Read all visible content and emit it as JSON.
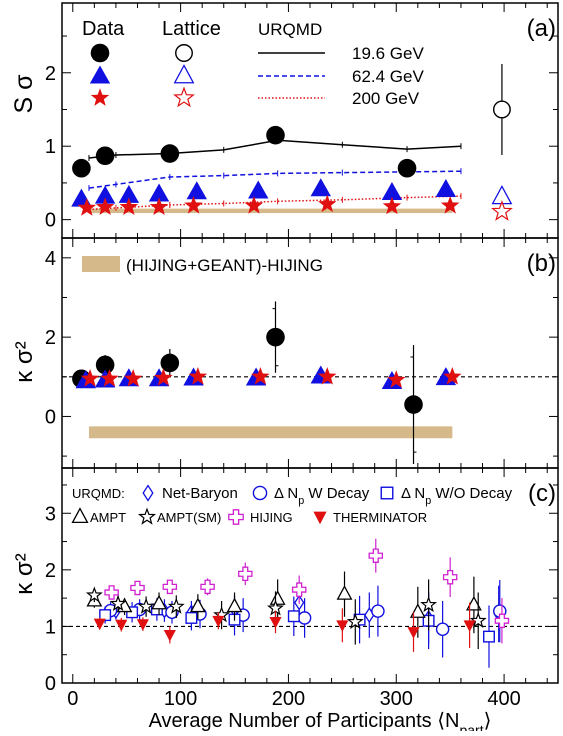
{
  "chart_data": [
    {
      "panel": "(a)",
      "type": "scatter",
      "ylabel": "S σ",
      "ylim": [
        -0.25,
        2.95
      ],
      "xlim": [
        -10,
        450
      ],
      "yticks": [
        0,
        1,
        2
      ],
      "legend": {
        "headers": [
          "Data",
          "Lattice",
          "URQMD"
        ],
        "energies": [
          "19.6 GeV",
          "62.4 GeV",
          "200 GeV"
        ]
      },
      "series": [
        {
          "name": "19.6 GeV",
          "color": "#000000",
          "marker": "circle",
          "data": [
            [
              8,
              0.7
            ],
            [
              30,
              0.87
            ],
            [
              90,
              0.9
            ],
            [
              188,
              1.15
            ],
            [
              310,
              0.7
            ]
          ]
        },
        {
          "name": "62.4 GeV",
          "color": "#1010e0",
          "marker": "triangle",
          "data": [
            [
              8,
              0.28
            ],
            [
              30,
              0.32
            ],
            [
              52,
              0.33
            ],
            [
              80,
              0.35
            ],
            [
              115,
              0.38
            ],
            [
              172,
              0.39
            ],
            [
              230,
              0.42
            ],
            [
              296,
              0.37
            ],
            [
              346,
              0.41
            ]
          ]
        },
        {
          "name": "200 GeV",
          "color": "#e01010",
          "marker": "star",
          "data": [
            [
              13,
              0.16
            ],
            [
              30,
              0.17
            ],
            [
              52,
              0.17
            ],
            [
              80,
              0.17
            ],
            [
              112,
              0.19
            ],
            [
              168,
              0.19
            ],
            [
              236,
              0.21
            ],
            [
              296,
              0.18
            ],
            [
              350,
              0.19
            ]
          ]
        }
      ],
      "lattice": [
        {
          "name": "19.6 GeV",
          "color": "#000000",
          "marker": "circle",
          "x": 398,
          "y": 1.5,
          "err": 0.62
        },
        {
          "name": "62.4 GeV",
          "color": "#1010e0",
          "marker": "triangle",
          "x": 398,
          "y": 0.31
        },
        {
          "name": "200 GeV",
          "color": "#e01010",
          "marker": "star",
          "x": 398,
          "y": 0.11
        }
      ],
      "urqmd": [
        {
          "name": "19.6 GeV",
          "style": "solid",
          "color": "#000000",
          "points": [
            [
              15,
              0.84
            ],
            [
              40,
              0.88
            ],
            [
              90,
              0.9
            ],
            [
              140,
              0.95
            ],
            [
              190,
              1.08
            ],
            [
              250,
              1.02
            ],
            [
              310,
              0.96
            ],
            [
              360,
              1.0
            ]
          ]
        },
        {
          "name": "62.4 GeV",
          "style": "dashed",
          "color": "#1010e0",
          "points": [
            [
              15,
              0.43
            ],
            [
              40,
              0.48
            ],
            [
              90,
              0.58
            ],
            [
              140,
              0.6
            ],
            [
              190,
              0.63
            ],
            [
              250,
              0.64
            ],
            [
              310,
              0.65
            ],
            [
              360,
              0.66
            ]
          ]
        },
        {
          "name": "200 GeV",
          "style": "dotted",
          "color": "#e01010",
          "points": [
            [
              15,
              0.14
            ],
            [
              40,
              0.16
            ],
            [
              90,
              0.2
            ],
            [
              140,
              0.22
            ],
            [
              190,
              0.25
            ],
            [
              250,
              0.27
            ],
            [
              310,
              0.3
            ],
            [
              360,
              0.32
            ]
          ]
        }
      ],
      "band": {
        "x": [
          15,
          352
        ],
        "y": [
          0.09,
          0.15
        ],
        "color": "#d6b98a"
      }
    },
    {
      "panel": "(b)",
      "type": "scatter",
      "ylabel": "κ σ²",
      "ylim": [
        -1.3,
        4.5
      ],
      "xlim": [
        -10,
        450
      ],
      "yticks": [
        0,
        2,
        4
      ],
      "reference_line": 1,
      "band_label": "(HIJING+GEANT)-HIJING",
      "series": [
        {
          "name": "19.6 GeV",
          "color": "#000000",
          "marker": "circle",
          "data": [
            [
              8,
              0.95,
              0.15
            ],
            [
              30,
              1.3,
              0.25
            ],
            [
              90,
              1.35,
              0.35
            ],
            [
              188,
              2.0,
              0.9
            ],
            [
              316,
              0.3,
              1.5
            ]
          ]
        },
        {
          "name": "62.4 GeV",
          "color": "#1010e0",
          "marker": "triangle",
          "data": [
            [
              12,
              0.9
            ],
            [
              30,
              0.92
            ],
            [
              52,
              0.95
            ],
            [
              80,
              0.95
            ],
            [
              112,
              0.97
            ],
            [
              170,
              0.97
            ],
            [
              230,
              1.02
            ],
            [
              296,
              0.88
            ],
            [
              346,
              0.98
            ]
          ]
        },
        {
          "name": "200 GeV",
          "color": "#e01010",
          "marker": "star",
          "data": [
            [
              16,
              0.95
            ],
            [
              34,
              0.95
            ],
            [
              56,
              0.95
            ],
            [
              84,
              0.97
            ],
            [
              116,
              1.0
            ],
            [
              174,
              1.0
            ],
            [
              236,
              1.0
            ],
            [
              300,
              0.92
            ],
            [
              352,
              1.0
            ]
          ]
        }
      ],
      "band": {
        "x": [
          15,
          352
        ],
        "y": [
          -0.55,
          -0.25
        ],
        "color": "#d6b98a"
      }
    },
    {
      "panel": "(c)",
      "type": "scatter",
      "ylabel": "κ σ²",
      "xlabel": "Average Number of Participants ⟨N_part⟩",
      "ylim": [
        0,
        3.8
      ],
      "xlim": [
        -10,
        450
      ],
      "yticks": [
        0,
        1,
        2,
        3
      ],
      "xticks": [
        0,
        100,
        200,
        300,
        400
      ],
      "reference_line": 1,
      "legend": {
        "prefix": "URQMD:",
        "labels": [
          "Net-Baryon",
          "Δ N_p W Decay",
          "Δ N_p W/O Decay",
          "AMPT",
          "AMPT(SM)",
          "HIJING",
          "THERMINATOR"
        ]
      },
      "series": [
        {
          "name": "Net-Baryon",
          "color": "#1010e0",
          "marker": "diamond",
          "data": [
            [
              40,
              1.27,
              0.15
            ],
            [
              85,
              1.28,
              0.2
            ],
            [
              110,
              1.25,
              0.2
            ],
            [
              150,
              1.3,
              0.25
            ],
            [
              210,
              1.42,
              0.3
            ],
            [
              275,
              1.2,
              0.4
            ],
            [
              330,
              1.15,
              0.45
            ],
            [
              395,
              1.22,
              0.5
            ]
          ]
        },
        {
          "name": "Δ N_p W Decay",
          "color": "#1010e0",
          "marker": "circle-open",
          "data": [
            [
              35,
              1.28,
              0.15
            ],
            [
              62,
              1.3,
              0.18
            ],
            [
              92,
              1.25,
              0.2
            ],
            [
              118,
              1.22,
              0.25
            ],
            [
              158,
              1.2,
              0.3
            ],
            [
              215,
              1.15,
              0.35
            ],
            [
              283,
              1.27,
              0.45
            ],
            [
              343,
              0.95,
              0.5
            ],
            [
              396,
              1.27,
              0.55
            ]
          ]
        },
        {
          "name": "Δ N_p W/O Decay",
          "color": "#1010e0",
          "marker": "square-open",
          "data": [
            [
              30,
              1.2,
              0.15
            ],
            [
              55,
              1.25,
              0.18
            ],
            [
              78,
              1.3,
              0.2
            ],
            [
              110,
              1.15,
              0.22
            ],
            [
              150,
              1.12,
              0.28
            ],
            [
              205,
              1.18,
              0.35
            ],
            [
              266,
              1.12,
              0.42
            ],
            [
              330,
              1.1,
              0.5
            ],
            [
              386,
              0.82,
              0.55
            ]
          ]
        },
        {
          "name": "AMPT",
          "color": "#000000",
          "marker": "triangle-open",
          "data": [
            [
              20,
              1.45,
              0.12
            ],
            [
              48,
              1.35,
              0.15
            ],
            [
              80,
              1.4,
              0.2
            ],
            [
              116,
              1.35,
              0.22
            ],
            [
              150,
              1.35,
              0.25
            ],
            [
              190,
              1.48,
              0.35
            ],
            [
              252,
              1.57,
              0.4
            ],
            [
              320,
              1.25,
              0.45
            ],
            [
              372,
              1.38,
              0.5
            ]
          ]
        },
        {
          "name": "AMPT(SM)",
          "color": "#000000",
          "marker": "star-open",
          "data": [
            [
              20,
              1.55,
              0.12
            ],
            [
              42,
              1.4,
              0.15
            ],
            [
              68,
              1.35,
              0.18
            ],
            [
              96,
              1.35,
              0.2
            ],
            [
              138,
              1.2,
              0.25
            ],
            [
              188,
              1.32,
              0.3
            ],
            [
              262,
              1.08,
              0.4
            ],
            [
              330,
              1.38,
              0.45
            ],
            [
              376,
              1.1,
              0.5
            ]
          ]
        },
        {
          "name": "HIJING",
          "color": "#d020d0",
          "marker": "cross-open",
          "data": [
            [
              36,
              1.6,
              0.1
            ],
            [
              60,
              1.68,
              0.12
            ],
            [
              90,
              1.7,
              0.12
            ],
            [
              125,
              1.7,
              0.15
            ],
            [
              160,
              1.93,
              0.2
            ],
            [
              210,
              1.65,
              0.25
            ],
            [
              281,
              2.25,
              0.3
            ],
            [
              350,
              1.87,
              0.35
            ],
            [
              398,
              1.1,
              0.4
            ]
          ]
        },
        {
          "name": "THERMINATOR",
          "color": "#e01010",
          "marker": "triangle-down",
          "data": [
            [
              25,
              1.05,
              0.1
            ],
            [
              45,
              1.03,
              0.12
            ],
            [
              65,
              1.04,
              0.12
            ],
            [
              90,
              0.85,
              0.15
            ],
            [
              135,
              1.1,
              0.15
            ],
            [
              188,
              1.08,
              0.2
            ],
            [
              250,
              1.02,
              0.3
            ],
            [
              316,
              0.9,
              0.35
            ],
            [
              368,
              1.02,
              0.4
            ]
          ]
        }
      ]
    }
  ]
}
